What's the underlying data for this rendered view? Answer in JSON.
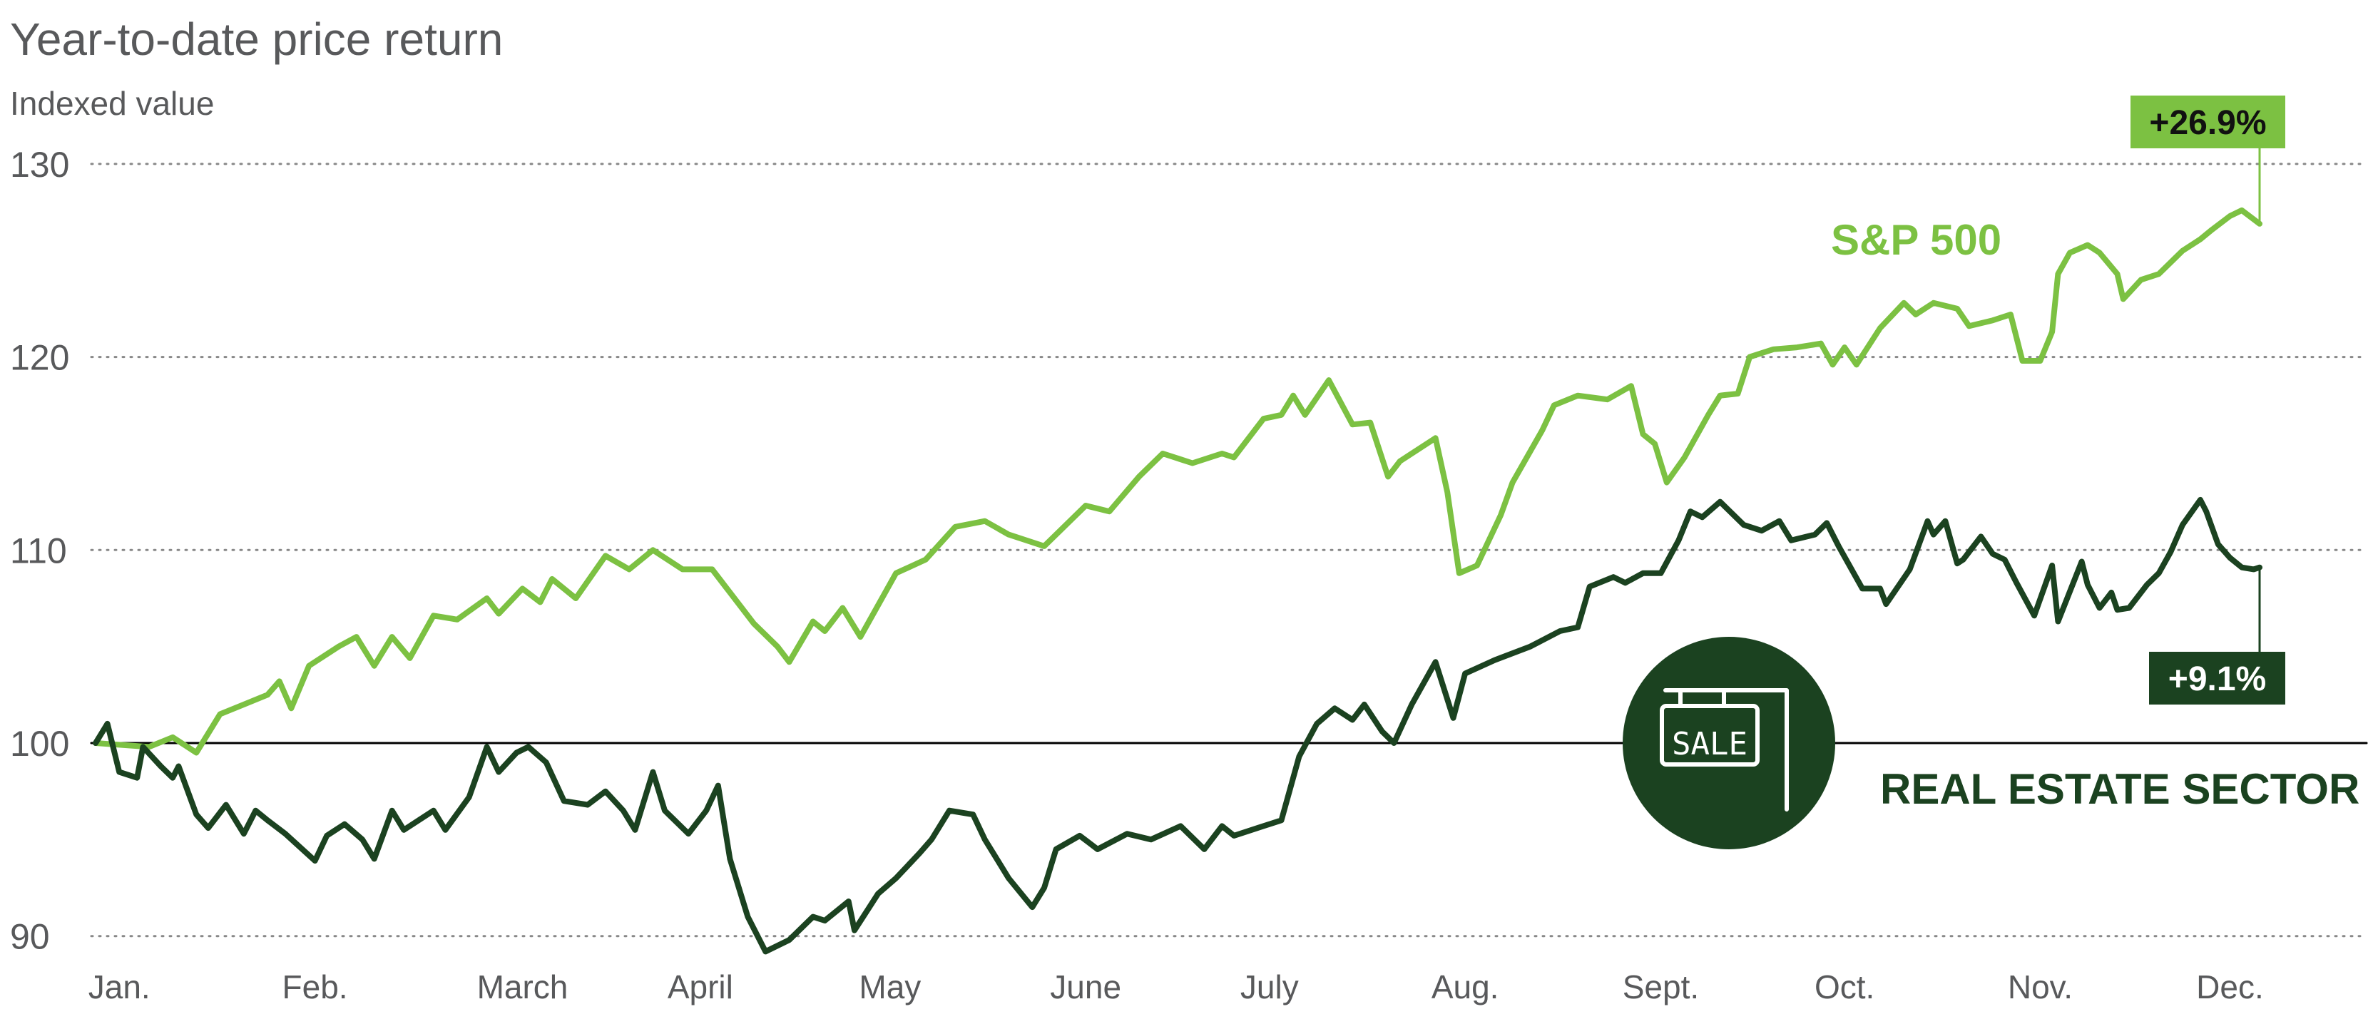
{
  "chart_data": {
    "type": "line",
    "title": "Year-to-date price return",
    "ylabel": "Indexed value",
    "xlabel": "",
    "ylim": [
      88,
      132
    ],
    "xlim_days": [
      0,
      365
    ],
    "yticks": [
      90,
      100,
      110,
      120,
      130
    ],
    "ytick_labels": [
      "90",
      "100",
      "110",
      "120",
      "130"
    ],
    "baseline": 100,
    "grid": "horizontal dotted",
    "months": [
      {
        "label": "Jan.",
        "day": 4
      },
      {
        "label": "Feb.",
        "day": 37
      },
      {
        "label": "March",
        "day": 72
      },
      {
        "label": "April",
        "day": 102
      },
      {
        "label": "May",
        "day": 134
      },
      {
        "label": "June",
        "day": 167
      },
      {
        "label": "July",
        "day": 198
      },
      {
        "label": "Aug.",
        "day": 231
      },
      {
        "label": "Sept.",
        "day": 264
      },
      {
        "label": "Oct.",
        "day": 295
      },
      {
        "label": "Nov.",
        "day": 328
      },
      {
        "label": "Dec.",
        "day": 360
      }
    ],
    "series": [
      {
        "name": "S&P 500",
        "color": "#7cc142",
        "end_label": "+26.9%",
        "x": [
          0,
          9,
          13,
          17,
          21,
          25,
          29,
          31,
          33,
          36,
          41,
          44,
          47,
          50,
          53,
          57,
          61,
          66,
          68,
          72,
          75,
          77,
          81,
          86,
          90,
          94,
          99,
          104,
          111,
          115,
          117,
          121,
          123,
          126,
          129,
          135,
          140,
          145,
          150,
          154,
          160,
          167,
          171,
          176,
          180,
          185,
          190,
          192,
          197,
          200,
          202,
          204,
          208,
          212,
          215,
          218,
          220,
          226,
          228,
          230,
          233,
          237,
          239,
          244,
          246,
          250,
          255,
          259,
          261,
          263,
          265,
          268,
          272,
          274,
          277,
          279,
          283,
          287,
          291,
          293,
          295,
          297,
          301,
          305,
          307,
          310,
          314,
          316,
          320,
          323,
          325,
          328,
          330,
          331,
          333,
          336,
          338,
          341,
          342,
          345,
          348,
          352,
          355,
          357,
          360,
          362,
          365
        ],
        "y": [
          100,
          99.8,
          100.3,
          99.5,
          101.5,
          102,
          102.5,
          103.2,
          101.8,
          104,
          105,
          105.5,
          104,
          105.5,
          104.4,
          106.6,
          106.4,
          107.5,
          106.7,
          108,
          107.3,
          108.5,
          107.5,
          109.7,
          109,
          110,
          109,
          109,
          106.2,
          105,
          104.2,
          106.3,
          105.8,
          107,
          105.5,
          108.8,
          109.5,
          111.2,
          111.5,
          110.8,
          110.2,
          112.3,
          112,
          113.8,
          115,
          114.5,
          115,
          114.8,
          116.8,
          117,
          118,
          117,
          118.8,
          116.5,
          116.6,
          113.8,
          114.6,
          115.8,
          113,
          108.8,
          109.2,
          111.8,
          113.5,
          116.2,
          117.5,
          118,
          117.8,
          118.5,
          116,
          115.5,
          113.5,
          114.8,
          117,
          118,
          118.1,
          120,
          120.4,
          120.5,
          120.7,
          119.6,
          120.5,
          119.6,
          121.5,
          122.8,
          122.2,
          122.8,
          122.5,
          121.6,
          121.9,
          122.2,
          119.8,
          119.8,
          121.3,
          124.3,
          125.4,
          125.8,
          125.4,
          124.3,
          123,
          124,
          124.3,
          125.5,
          126.1,
          126.6,
          127.3,
          127.6,
          126.9
        ]
      },
      {
        "name": "REAL ESTATE SECTOR",
        "color": "#1b4220",
        "end_label": "+9.1%",
        "x": [
          0,
          2,
          4,
          7,
          8,
          11,
          13,
          14,
          17,
          19,
          22,
          25,
          27,
          29,
          32,
          37,
          39,
          42,
          45,
          47,
          50,
          52,
          57,
          59,
          63,
          66,
          68,
          71,
          73,
          76,
          79,
          83,
          86,
          89,
          91,
          94,
          96,
          100,
          103,
          105,
          107,
          110,
          113,
          117,
          121,
          123,
          127,
          128,
          132,
          135,
          139,
          141,
          144,
          148,
          150,
          154,
          158,
          160,
          162,
          166,
          169,
          174,
          178,
          183,
          187,
          190,
          192,
          196,
          200,
          203,
          206,
          209,
          212,
          214,
          217,
          219,
          222,
          226,
          229,
          231,
          236,
          242,
          247,
          250,
          252,
          256,
          258,
          261,
          264,
          267,
          269,
          271,
          274,
          278,
          281,
          284,
          286,
          290,
          292,
          294,
          298,
          301,
          302,
          306,
          309,
          310,
          312,
          314,
          315,
          318,
          320,
          322,
          324,
          327,
          330,
          331,
          335,
          336,
          338,
          340,
          341,
          343,
          346,
          348,
          350,
          352,
          355,
          356,
          358,
          360,
          362,
          364,
          365
        ],
        "y": [
          100,
          101,
          98.5,
          98.2,
          99.8,
          98.8,
          98.2,
          98.8,
          96.3,
          95.6,
          96.8,
          95.3,
          96.5,
          96,
          95.3,
          93.9,
          95.2,
          95.8,
          95,
          94,
          96.5,
          95.5,
          96.5,
          95.5,
          97.2,
          99.8,
          98.5,
          99.5,
          99.8,
          99,
          97,
          96.8,
          97.5,
          96.5,
          95.5,
          98.5,
          96.5,
          95.3,
          96.5,
          97.8,
          94,
          91,
          89.2,
          89.8,
          91,
          90.8,
          91.8,
          90.3,
          92.2,
          93,
          94.3,
          95,
          96.5,
          96.3,
          95,
          93,
          91.5,
          92.5,
          94.5,
          95.2,
          94.5,
          95.3,
          95,
          95.7,
          94.5,
          95.7,
          95.2,
          95.6,
          96,
          99.3,
          101,
          101.8,
          101.2,
          102,
          100.6,
          100,
          102,
          104.2,
          101.3,
          103.6,
          104.3,
          105,
          105.8,
          106,
          108.1,
          108.6,
          108.3,
          108.8,
          108.8,
          110.5,
          112,
          111.7,
          112.5,
          111.3,
          111,
          111.5,
          110.5,
          110.8,
          111.4,
          110.2,
          108,
          108,
          107.2,
          109,
          111.5,
          110.8,
          111.5,
          109.3,
          109.5,
          110.7,
          109.8,
          109.5,
          108.3,
          106.6,
          109.2,
          106.3,
          109.4,
          108.2,
          107,
          107.8,
          106.9,
          107,
          108.2,
          108.8,
          109.9,
          111.3,
          112.6,
          112,
          110.3,
          109.6,
          109.1,
          109,
          109.1
        ]
      }
    ],
    "annotations": [
      {
        "text": "S&P 500",
        "series": 0
      },
      {
        "text": "REAL ESTATE SECTOR",
        "series": 1
      },
      {
        "text": "SALE",
        "kind": "icon-sign"
      }
    ]
  }
}
